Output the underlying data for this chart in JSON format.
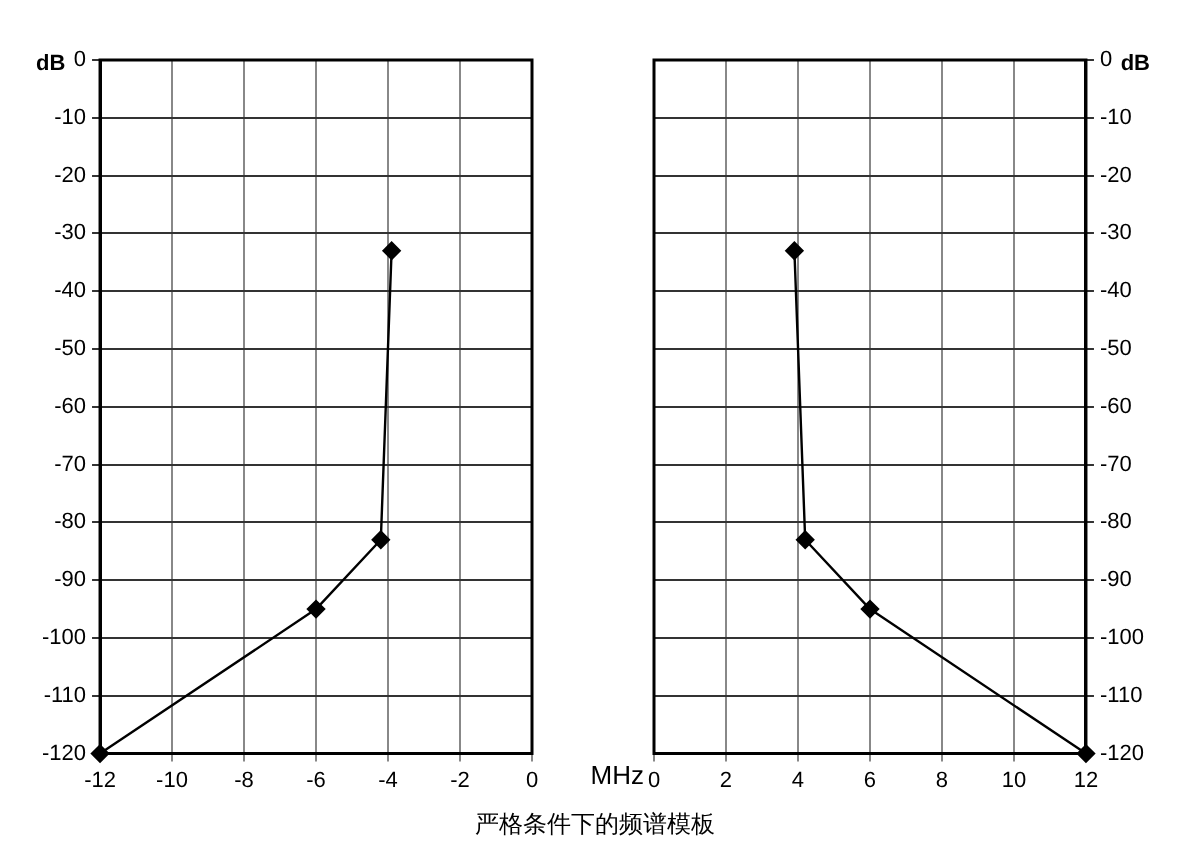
{
  "chart_data": [
    {
      "type": "line",
      "ylabel": "dB",
      "xlabel": "MHz",
      "marker": "diamond",
      "grid": true,
      "xlim": [
        -12,
        0
      ],
      "xticks": [
        -12,
        -10,
        -8,
        -6,
        -4,
        -2,
        0
      ],
      "ylim": [
        -120,
        0
      ],
      "yticks": [
        -120,
        -110,
        -100,
        -90,
        -80,
        -70,
        -60,
        -50,
        -40,
        -30,
        -20,
        -10,
        0
      ],
      "series": [
        {
          "color": "#000000",
          "x": [
            -12,
            -6,
            -4.2,
            -3.9
          ],
          "values": [
            -120,
            -95,
            -83,
            -33
          ]
        }
      ]
    },
    {
      "type": "line",
      "ylabel": "dB",
      "marker": "diamond",
      "grid": true,
      "xlim": [
        0,
        12
      ],
      "xticks": [
        0,
        2,
        4,
        6,
        8,
        10,
        12
      ],
      "ylim": [
        -120,
        0
      ],
      "yticks": [
        -120,
        -110,
        -100,
        -90,
        -80,
        -70,
        -60,
        -50,
        -40,
        -30,
        -20,
        -10,
        0
      ],
      "series": [
        {
          "color": "#000000",
          "x": [
            3.9,
            4.2,
            6,
            12
          ],
          "values": [
            -33,
            -83,
            -95,
            -120
          ]
        }
      ],
      "annotations": [
        "严格条件下的频谱模板"
      ]
    }
  ]
}
